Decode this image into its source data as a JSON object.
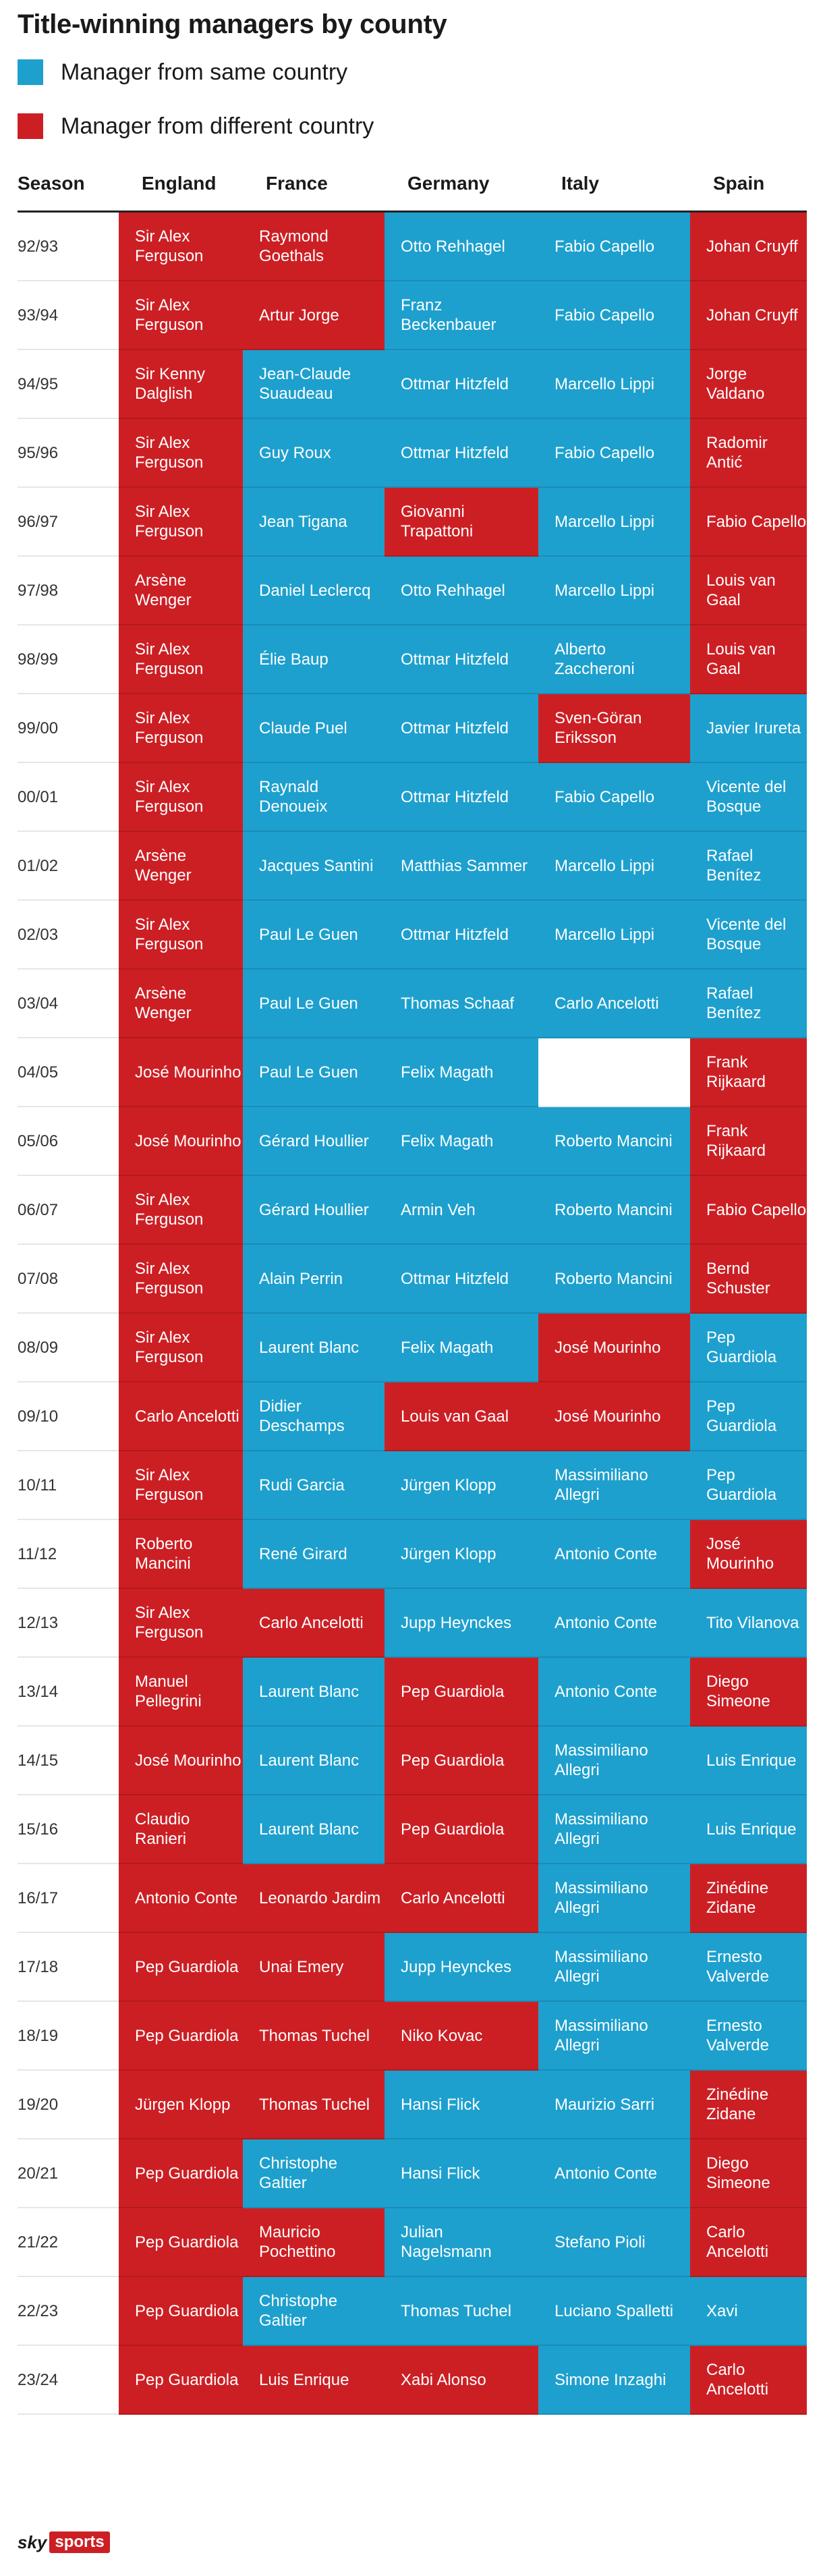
{
  "title": "Title-winning managers by county",
  "legend": [
    {
      "label": "Manager from same country",
      "color": "#1da0ce"
    },
    {
      "label": "Manager from different country",
      "color": "#cc1f24"
    }
  ],
  "headers": [
    "Season",
    "England",
    "France",
    "Germany",
    "Italy",
    "Spain"
  ],
  "logo": {
    "sky": "sky",
    "sports": "sports"
  },
  "chart_data": {
    "type": "table",
    "title": "Title-winning managers by county",
    "colors": {
      "same": "#1da0ce",
      "different": "#cc1f24"
    },
    "columns": [
      "Season",
      "England",
      "France",
      "Germany",
      "Italy",
      "Spain"
    ],
    "rows": [
      {
        "season": "92/93",
        "cells": [
          [
            "Sir Alex Ferguson",
            "diff"
          ],
          [
            "Raymond Goethals",
            "diff"
          ],
          [
            "Otto Rehhagel",
            "same"
          ],
          [
            "Fabio Capello",
            "same"
          ],
          [
            "Johan Cruyff",
            "diff"
          ]
        ]
      },
      {
        "season": "93/94",
        "cells": [
          [
            "Sir Alex Ferguson",
            "diff"
          ],
          [
            "Artur Jorge",
            "diff"
          ],
          [
            "Franz Beckenbauer",
            "same"
          ],
          [
            "Fabio Capello",
            "same"
          ],
          [
            "Johan Cruyff",
            "diff"
          ]
        ]
      },
      {
        "season": "94/95",
        "cells": [
          [
            "Sir Kenny Dalglish",
            "diff"
          ],
          [
            "Jean-Claude Suaudeau",
            "same"
          ],
          [
            "Ottmar Hitzfeld",
            "same"
          ],
          [
            "Marcello Lippi",
            "same"
          ],
          [
            "Jorge Valdano",
            "diff"
          ]
        ]
      },
      {
        "season": "95/96",
        "cells": [
          [
            "Sir Alex Ferguson",
            "diff"
          ],
          [
            "Guy Roux",
            "same"
          ],
          [
            "Ottmar Hitzfeld",
            "same"
          ],
          [
            "Fabio Capello",
            "same"
          ],
          [
            "Radomir Antić",
            "diff"
          ]
        ]
      },
      {
        "season": "96/97",
        "cells": [
          [
            "Sir Alex Ferguson",
            "diff"
          ],
          [
            "Jean Tigana",
            "same"
          ],
          [
            "Giovanni Trapattoni",
            "diff"
          ],
          [
            "Marcello Lippi",
            "same"
          ],
          [
            "Fabio Capello",
            "diff"
          ]
        ]
      },
      {
        "season": "97/98",
        "cells": [
          [
            "Arsène Wenger",
            "diff"
          ],
          [
            "Daniel Leclercq",
            "same"
          ],
          [
            "Otto Rehhagel",
            "same"
          ],
          [
            "Marcello Lippi",
            "same"
          ],
          [
            "Louis van Gaal",
            "diff"
          ]
        ]
      },
      {
        "season": "98/99",
        "cells": [
          [
            "Sir Alex Ferguson",
            "diff"
          ],
          [
            "Élie Baup",
            "same"
          ],
          [
            "Ottmar Hitzfeld",
            "same"
          ],
          [
            "Alberto Zaccheroni",
            "same"
          ],
          [
            "Louis van Gaal",
            "diff"
          ]
        ]
      },
      {
        "season": "99/00",
        "cells": [
          [
            "Sir Alex Ferguson",
            "diff"
          ],
          [
            "Claude Puel",
            "same"
          ],
          [
            "Ottmar Hitzfeld",
            "same"
          ],
          [
            "Sven-Göran Eriksson",
            "diff"
          ],
          [
            "Javier Irureta",
            "same"
          ]
        ]
      },
      {
        "season": "00/01",
        "cells": [
          [
            "Sir Alex Ferguson",
            "diff"
          ],
          [
            "Raynald Denoueix",
            "same"
          ],
          [
            "Ottmar Hitzfeld",
            "same"
          ],
          [
            "Fabio Capello",
            "same"
          ],
          [
            "Vicente del Bosque",
            "same"
          ]
        ]
      },
      {
        "season": "01/02",
        "cells": [
          [
            "Arsène Wenger",
            "diff"
          ],
          [
            "Jacques Santini",
            "same"
          ],
          [
            "Matthias Sammer",
            "same"
          ],
          [
            "Marcello Lippi",
            "same"
          ],
          [
            "Rafael Benítez",
            "same"
          ]
        ]
      },
      {
        "season": "02/03",
        "cells": [
          [
            "Sir Alex Ferguson",
            "diff"
          ],
          [
            "Paul Le Guen",
            "same"
          ],
          [
            "Ottmar Hitzfeld",
            "same"
          ],
          [
            "Marcello Lippi",
            "same"
          ],
          [
            "Vicente del Bosque",
            "same"
          ]
        ]
      },
      {
        "season": "03/04",
        "cells": [
          [
            "Arsène Wenger",
            "diff"
          ],
          [
            "Paul Le Guen",
            "same"
          ],
          [
            "Thomas Schaaf",
            "same"
          ],
          [
            "Carlo Ancelotti",
            "same"
          ],
          [
            "Rafael Benítez",
            "same"
          ]
        ]
      },
      {
        "season": "04/05",
        "cells": [
          [
            "José Mourinho",
            "diff"
          ],
          [
            "Paul Le Guen",
            "same"
          ],
          [
            "Felix Magath",
            "same"
          ],
          [
            "",
            "none"
          ],
          [
            "Frank Rijkaard",
            "diff"
          ]
        ]
      },
      {
        "season": "05/06",
        "cells": [
          [
            "José Mourinho",
            "diff"
          ],
          [
            "Gérard Houllier",
            "same"
          ],
          [
            "Felix Magath",
            "same"
          ],
          [
            "Roberto Mancini",
            "same"
          ],
          [
            "Frank Rijkaard",
            "diff"
          ]
        ]
      },
      {
        "season": "06/07",
        "cells": [
          [
            "Sir Alex Ferguson",
            "diff"
          ],
          [
            "Gérard Houllier",
            "same"
          ],
          [
            "Armin Veh",
            "same"
          ],
          [
            "Roberto Mancini",
            "same"
          ],
          [
            "Fabio Capello",
            "diff"
          ]
        ]
      },
      {
        "season": "07/08",
        "cells": [
          [
            "Sir Alex Ferguson",
            "diff"
          ],
          [
            "Alain Perrin",
            "same"
          ],
          [
            "Ottmar Hitzfeld",
            "same"
          ],
          [
            "Roberto Mancini",
            "same"
          ],
          [
            "Bernd Schuster",
            "diff"
          ]
        ]
      },
      {
        "season": "08/09",
        "cells": [
          [
            "Sir Alex Ferguson",
            "diff"
          ],
          [
            "Laurent Blanc",
            "same"
          ],
          [
            "Felix Magath",
            "same"
          ],
          [
            "José Mourinho",
            "diff"
          ],
          [
            "Pep Guardiola",
            "same"
          ]
        ]
      },
      {
        "season": "09/10",
        "cells": [
          [
            "Carlo Ancelotti",
            "diff"
          ],
          [
            "Didier Deschamps",
            "same"
          ],
          [
            "Louis van Gaal",
            "diff"
          ],
          [
            "José Mourinho",
            "diff"
          ],
          [
            "Pep Guardiola",
            "same"
          ]
        ]
      },
      {
        "season": "10/11",
        "cells": [
          [
            "Sir Alex Ferguson",
            "diff"
          ],
          [
            "Rudi Garcia",
            "same"
          ],
          [
            "Jürgen Klopp",
            "same"
          ],
          [
            "Massimiliano Allegri",
            "same"
          ],
          [
            "Pep Guardiola",
            "same"
          ]
        ]
      },
      {
        "season": "11/12",
        "cells": [
          [
            "Roberto Mancini",
            "diff"
          ],
          [
            "René Girard",
            "same"
          ],
          [
            "Jürgen Klopp",
            "same"
          ],
          [
            "Antonio Conte",
            "same"
          ],
          [
            "José Mourinho",
            "diff"
          ]
        ]
      },
      {
        "season": "12/13",
        "cells": [
          [
            "Sir Alex Ferguson",
            "diff"
          ],
          [
            "Carlo Ancelotti",
            "diff"
          ],
          [
            "Jupp Heynckes",
            "same"
          ],
          [
            "Antonio Conte",
            "same"
          ],
          [
            "Tito Vilanova",
            "same"
          ]
        ]
      },
      {
        "season": "13/14",
        "cells": [
          [
            "Manuel Pellegrini",
            "diff"
          ],
          [
            "Laurent Blanc",
            "same"
          ],
          [
            "Pep Guardiola",
            "diff"
          ],
          [
            "Antonio Conte",
            "same"
          ],
          [
            "Diego Simeone",
            "diff"
          ]
        ]
      },
      {
        "season": "14/15",
        "cells": [
          [
            "José Mourinho",
            "diff"
          ],
          [
            "Laurent Blanc",
            "same"
          ],
          [
            "Pep Guardiola",
            "diff"
          ],
          [
            "Massimiliano Allegri",
            "same"
          ],
          [
            "Luis Enrique",
            "same"
          ]
        ]
      },
      {
        "season": "15/16",
        "cells": [
          [
            "Claudio Ranieri",
            "diff"
          ],
          [
            "Laurent Blanc",
            "same"
          ],
          [
            "Pep Guardiola",
            "diff"
          ],
          [
            "Massimiliano Allegri",
            "same"
          ],
          [
            "Luis Enrique",
            "same"
          ]
        ]
      },
      {
        "season": "16/17",
        "cells": [
          [
            "Antonio Conte",
            "diff"
          ],
          [
            "Leonardo Jardim",
            "diff"
          ],
          [
            "Carlo Ancelotti",
            "diff"
          ],
          [
            "Massimiliano Allegri",
            "same"
          ],
          [
            "Zinédine Zidane",
            "diff"
          ]
        ]
      },
      {
        "season": "17/18",
        "cells": [
          [
            "Pep Guardiola",
            "diff"
          ],
          [
            "Unai Emery",
            "diff"
          ],
          [
            "Jupp Heynckes",
            "same"
          ],
          [
            "Massimiliano Allegri",
            "same"
          ],
          [
            "Ernesto Valverde",
            "same"
          ]
        ]
      },
      {
        "season": "18/19",
        "cells": [
          [
            "Pep Guardiola",
            "diff"
          ],
          [
            "Thomas Tuchel",
            "diff"
          ],
          [
            "Niko Kovac",
            "diff"
          ],
          [
            "Massimiliano Allegri",
            "same"
          ],
          [
            "Ernesto Valverde",
            "same"
          ]
        ]
      },
      {
        "season": "19/20",
        "cells": [
          [
            "Jürgen Klopp",
            "diff"
          ],
          [
            "Thomas Tuchel",
            "diff"
          ],
          [
            "Hansi Flick",
            "same"
          ],
          [
            "Maurizio Sarri",
            "same"
          ],
          [
            "Zinédine Zidane",
            "diff"
          ]
        ]
      },
      {
        "season": "20/21",
        "cells": [
          [
            "Pep Guardiola",
            "diff"
          ],
          [
            "Christophe Galtier",
            "same"
          ],
          [
            "Hansi Flick",
            "same"
          ],
          [
            "Antonio Conte",
            "same"
          ],
          [
            "Diego Simeone",
            "diff"
          ]
        ]
      },
      {
        "season": "21/22",
        "cells": [
          [
            "Pep Guardiola",
            "diff"
          ],
          [
            "Mauricio Pochettino",
            "diff"
          ],
          [
            "Julian Nagelsmann",
            "same"
          ],
          [
            "Stefano Pioli",
            "same"
          ],
          [
            "Carlo Ancelotti",
            "diff"
          ]
        ]
      },
      {
        "season": "22/23",
        "cells": [
          [
            "Pep Guardiola",
            "diff"
          ],
          [
            "Christophe Galtier",
            "same"
          ],
          [
            "Thomas Tuchel",
            "same"
          ],
          [
            "Luciano Spalletti",
            "same"
          ],
          [
            "Xavi",
            "same"
          ]
        ]
      },
      {
        "season": "23/24",
        "cells": [
          [
            "Pep Guardiola",
            "diff"
          ],
          [
            "Luis Enrique",
            "diff"
          ],
          [
            "Xabi Alonso",
            "diff"
          ],
          [
            "Simone Inzaghi",
            "same"
          ],
          [
            "Carlo Ancelotti",
            "diff"
          ]
        ]
      }
    ]
  }
}
